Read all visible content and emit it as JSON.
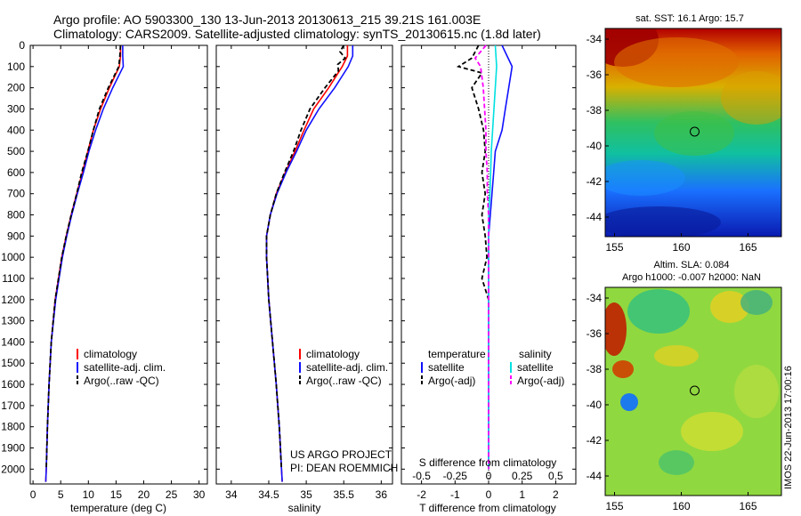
{
  "header": {
    "line1": "Argo profile: AO 5903300_130 13-Jun-2013 20130613_215 39.21S 161.003E",
    "line2": "Climatology: CARS2009. Satellite-adjusted climatology: synTS_20130615.nc (1.8d later)"
  },
  "project": {
    "line1": "US ARGO PROJECT",
    "line2": "PI: DEAN ROEMMICH"
  },
  "stamp": "IMOS 22-Jun-2013 17:00:16",
  "colors": {
    "climatology": "#ff0000",
    "satellite": "#1010ff",
    "argo": "#000000",
    "cyan": "#00e0e0",
    "magenta": "#ff00ff"
  },
  "chart_data": [
    {
      "type": "line",
      "id": "temperature",
      "xlabel": "temperature (deg C)",
      "ylabel": "",
      "xlim": [
        -0.5,
        31.5
      ],
      "ylim": [
        2070,
        0
      ],
      "xticks": [
        0,
        5,
        10,
        15,
        20,
        25,
        30
      ],
      "yticks": [
        0,
        100,
        200,
        300,
        400,
        500,
        600,
        700,
        800,
        900,
        1000,
        1100,
        1200,
        1300,
        1400,
        1500,
        1600,
        1700,
        1800,
        1900,
        2000
      ],
      "legend": [
        "climatology",
        "satellite-adj. clim.",
        "Argo(..raw -QC)"
      ],
      "series": [
        {
          "name": "climatology",
          "depth": [
            0,
            50,
            100,
            200,
            300,
            400,
            500,
            600,
            700,
            800,
            900,
            1000,
            1200,
            1400,
            1600,
            1800,
            2000,
            2060
          ],
          "values": [
            15.8,
            15.8,
            15.6,
            13.8,
            12.2,
            10.9,
            9.9,
            8.9,
            7.9,
            6.9,
            6.0,
            5.2,
            4.0,
            3.3,
            2.9,
            2.6,
            2.4,
            2.3
          ]
        },
        {
          "name": "satellite-adj. clim.",
          "depth": [
            0,
            50,
            100,
            200,
            300,
            400,
            500,
            600,
            700,
            800,
            900,
            1000,
            1200,
            1400,
            1600,
            1800,
            2000,
            2060
          ],
          "values": [
            16.2,
            16.2,
            16.3,
            14.4,
            12.7,
            11.3,
            10.1,
            9.1,
            8.0,
            7.0,
            6.1,
            5.3,
            4.1,
            3.3,
            2.9,
            2.6,
            2.4,
            2.3
          ]
        },
        {
          "name": "Argo(..raw -QC)",
          "depth": [
            0,
            50,
            100,
            200,
            300,
            400,
            500,
            600,
            700,
            800,
            900,
            1000,
            1200,
            1400,
            1600,
            1800,
            2000
          ],
          "values": [
            15.8,
            15.7,
            15.5,
            13.6,
            12.0,
            10.9,
            9.9,
            8.8,
            7.9,
            6.9,
            6.0,
            5.2,
            4.0,
            3.3,
            2.9,
            2.6,
            2.4
          ]
        }
      ]
    },
    {
      "type": "line",
      "id": "salinity",
      "xlabel": "salinity",
      "xlim": [
        33.8,
        36.15
      ],
      "ylim": [
        2070,
        0
      ],
      "xticks": [
        34,
        34.5,
        35,
        35.5,
        36
      ],
      "legend": [
        "climatology",
        "satellite-adj. clim.",
        "Argo(..raw -QC)"
      ],
      "series": [
        {
          "name": "climatology",
          "depth": [
            0,
            50,
            100,
            200,
            300,
            400,
            500,
            600,
            700,
            800,
            900,
            1000,
            1200,
            1400,
            1600,
            1800,
            2000,
            2060
          ],
          "values": [
            35.55,
            35.55,
            35.48,
            35.3,
            35.1,
            34.97,
            34.85,
            34.72,
            34.6,
            34.52,
            34.47,
            34.47,
            34.5,
            34.55,
            34.6,
            34.64,
            34.67,
            34.68
          ]
        },
        {
          "name": "satellite-adj. clim.",
          "depth": [
            0,
            50,
            100,
            200,
            300,
            400,
            500,
            600,
            700,
            800,
            900,
            1000,
            1200,
            1400,
            1600,
            1800,
            2000,
            2060
          ],
          "values": [
            35.62,
            35.62,
            35.56,
            35.38,
            35.17,
            35.0,
            34.87,
            34.73,
            34.61,
            34.52,
            34.47,
            34.47,
            34.5,
            34.55,
            34.6,
            34.64,
            34.67,
            34.68
          ]
        },
        {
          "name": "Argo(..raw -QC)",
          "depth": [
            0,
            30,
            60,
            90,
            120,
            200,
            300,
            400,
            500,
            600,
            700,
            800,
            900,
            1000,
            1200,
            1400,
            1600,
            1800,
            2000
          ],
          "values": [
            35.5,
            35.45,
            35.52,
            35.42,
            35.43,
            35.25,
            35.05,
            34.93,
            34.83,
            34.71,
            34.6,
            34.52,
            34.47,
            34.47,
            34.5,
            34.55,
            34.6,
            34.64,
            34.67
          ]
        }
      ]
    },
    {
      "type": "line",
      "id": "differences",
      "xlabel": "T difference from climatology",
      "xlabel_top": "S difference from climatology",
      "xlim": [
        -2.6,
        2.6
      ],
      "ylim": [
        2070,
        0
      ],
      "xticks": [
        -2,
        -1,
        0,
        1,
        2
      ],
      "top_ticks": [
        -0.5,
        -0.25,
        0,
        0.25,
        0.5
      ],
      "legend_headers": [
        "temperature",
        "salinity"
      ],
      "legend": [
        "satellite",
        "Argo(-adj)",
        "satellite",
        "Argo(-adj)"
      ],
      "series": [
        {
          "name": "temperature satellite",
          "axis": "T",
          "depth": [
            0,
            100,
            200,
            300,
            400,
            500,
            600,
            700,
            800,
            900,
            1000,
            1200,
            1400,
            1600,
            1800,
            2000
          ],
          "values": [
            0.4,
            0.7,
            0.6,
            0.5,
            0.4,
            0.2,
            0.15,
            0.1,
            0.05,
            0.0,
            0.0,
            0.0,
            0.0,
            0.0,
            0.0,
            0.0
          ]
        },
        {
          "name": "temperature Argo(-adj)",
          "axis": "T",
          "depth": [
            0,
            60,
            100,
            130,
            200,
            300,
            400,
            500,
            600,
            700,
            800,
            900,
            1000,
            1100,
            1200,
            1400,
            1600,
            1800,
            2000
          ],
          "values": [
            -0.3,
            -0.5,
            -0.9,
            -0.2,
            -0.5,
            -0.3,
            -0.15,
            -0.1,
            -0.2,
            -0.1,
            -0.2,
            -0.1,
            -0.05,
            -0.2,
            0.0,
            0.0,
            0.0,
            0.0,
            0.0
          ]
        },
        {
          "name": "salinity satellite",
          "axis": "S",
          "depth": [
            0,
            100,
            200,
            300,
            400,
            500,
            600,
            700,
            800,
            900,
            1000,
            1200,
            1400,
            1600,
            1800,
            2000
          ],
          "values": [
            0.05,
            0.06,
            0.05,
            0.04,
            0.03,
            0.02,
            0.015,
            0.01,
            0.0,
            0.0,
            0.0,
            0.0,
            0.0,
            0.0,
            0.0,
            0.0
          ]
        },
        {
          "name": "salinity Argo(-adj)",
          "axis": "S",
          "depth": [
            0,
            60,
            100,
            200,
            300,
            400,
            500,
            600,
            700,
            800,
            900,
            1000,
            1200,
            1400,
            1600,
            1800,
            2000
          ],
          "values": [
            -0.02,
            -0.1,
            -0.06,
            -0.04,
            -0.03,
            -0.02,
            -0.02,
            -0.01,
            -0.01,
            0.0,
            0.0,
            0.0,
            0.0,
            0.0,
            0.0,
            0.0,
            0.0
          ]
        }
      ]
    },
    {
      "type": "heatmap",
      "id": "sst-map",
      "title": "sat. SST: 16.1 Argo: 15.7",
      "xlim": [
        154.3,
        167.5
      ],
      "ylim": [
        -45.1,
        -33.4
      ],
      "xticks": [
        155,
        160,
        165
      ],
      "yticks": [
        -34,
        -36,
        -38,
        -40,
        -42,
        -44
      ],
      "marker": [
        161.0,
        -39.2
      ]
    },
    {
      "type": "heatmap",
      "id": "sla-map",
      "title_line1": "Altim. SLA: 0.084",
      "title_line2": "Argo h1000: -0.007 h2000: NaN",
      "xlim": [
        154.3,
        167.5
      ],
      "ylim": [
        -45.1,
        -33.4
      ],
      "xticks": [
        155,
        160,
        165
      ],
      "yticks": [
        -34,
        -36,
        -38,
        -40,
        -42,
        -44
      ],
      "marker": [
        161.0,
        -39.2
      ]
    }
  ]
}
